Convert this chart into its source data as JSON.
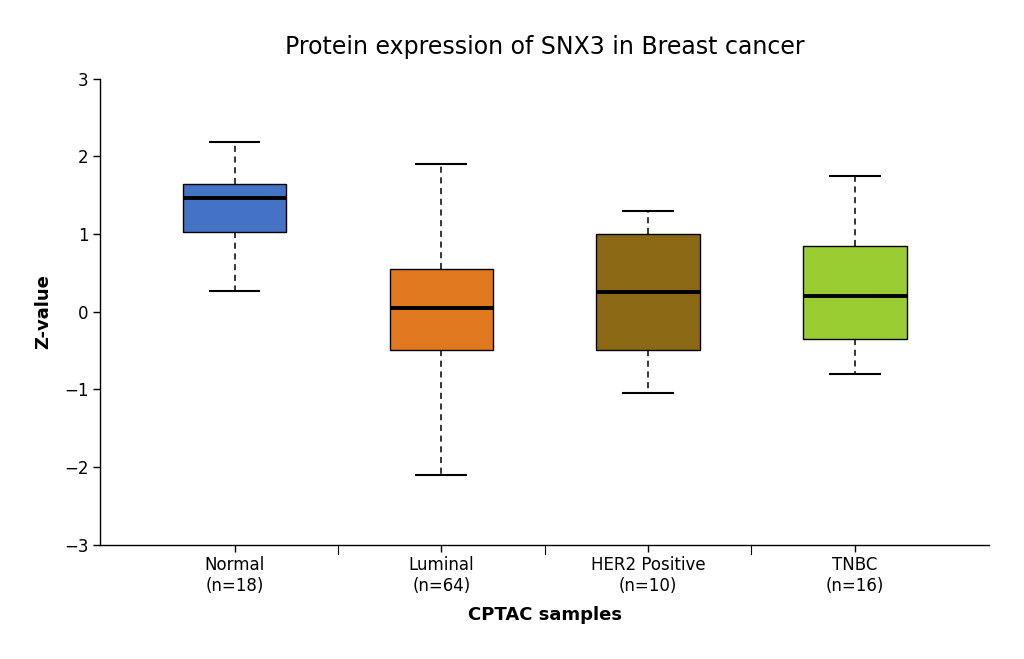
{
  "title": "Protein expression of SNX3 in Breast cancer",
  "xlabel": "CPTAC samples",
  "ylabel": "Z-value",
  "categories": [
    "Normal\n(n=18)",
    "Luminal\n(n=64)",
    "HER2 Positive\n(n=10)",
    "TNBC\n(n=16)"
  ],
  "box_colors": [
    "#4472C4",
    "#E07820",
    "#8B6914",
    "#9ACD32"
  ],
  "boxes": [
    {
      "q1": 1.02,
      "median": 1.47,
      "q3": 1.65,
      "whislo": 0.27,
      "whishi": 2.18
    },
    {
      "q1": -0.5,
      "median": 0.05,
      "q3": 0.55,
      "whislo": -2.1,
      "whishi": 1.9
    },
    {
      "q1": -0.5,
      "median": 0.25,
      "q3": 1.0,
      "whislo": -1.05,
      "whishi": 1.3
    },
    {
      "q1": -0.35,
      "median": 0.2,
      "q3": 0.85,
      "whislo": -0.8,
      "whishi": 1.75
    }
  ],
  "ylim": [
    -3,
    3
  ],
  "yticks": [
    -3,
    -2,
    -1,
    0,
    1,
    2,
    3
  ],
  "background_color": "#ffffff",
  "title_fontsize": 17,
  "label_fontsize": 13,
  "tick_fontsize": 12
}
